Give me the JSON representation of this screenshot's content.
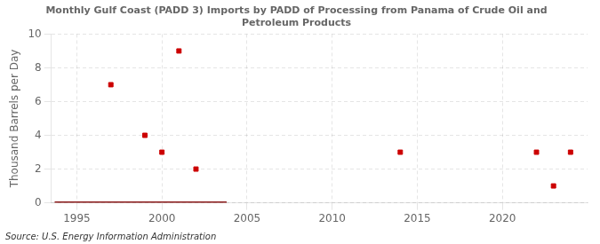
{
  "chart_data": {
    "type": "scatter",
    "title": "Monthly Gulf Coast (PADD 3) Imports by PADD of Processing from Panama of Crude Oil and\nPetroleum Products",
    "ylabel": "Thousand Barrels per Day",
    "annotations": [
      "Source: U.S. Energy Information Administration"
    ],
    "xlim": [
      1993.5,
      2025
    ],
    "ylim": [
      0,
      10
    ],
    "xticks": [
      1995,
      2000,
      2005,
      2010,
      2015,
      2020
    ],
    "yticks": [
      0,
      2,
      4,
      6,
      8,
      10
    ],
    "grid": true,
    "series": [
      {
        "type": "line",
        "color": "#8b1a1a",
        "x": [
          1993.7,
          2003.8
        ],
        "values": [
          0.0,
          0.0
        ]
      },
      {
        "type": "scatter",
        "color": "#cc0000",
        "marker": "square",
        "x": [
          1997,
          1999,
          2000,
          2001,
          2002,
          2014,
          2022,
          2023,
          2024
        ],
        "values": [
          7,
          4,
          3,
          9,
          2,
          3,
          3,
          1,
          3
        ]
      }
    ]
  }
}
